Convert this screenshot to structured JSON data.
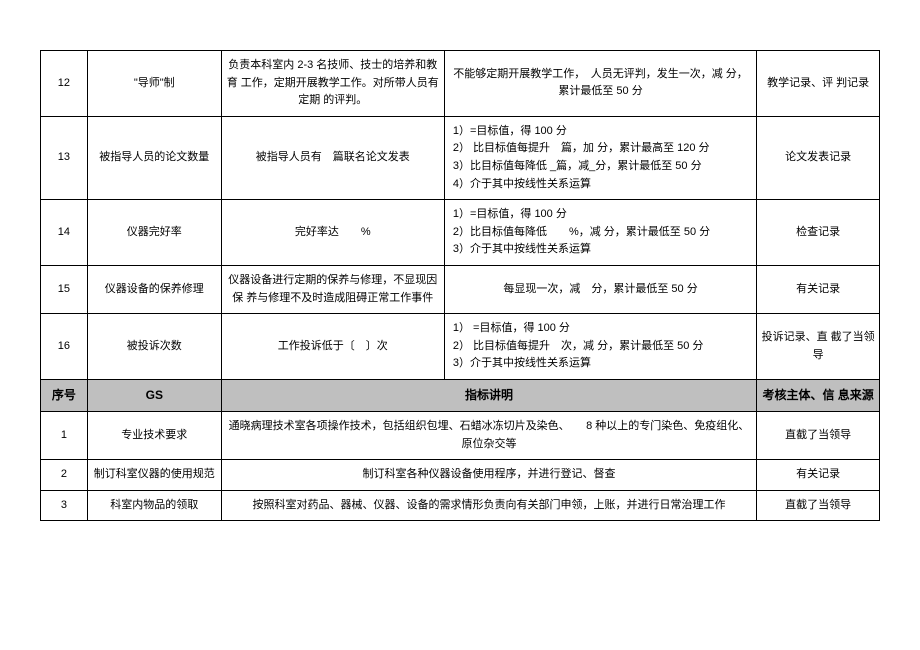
{
  "section1": {
    "rows": [
      {
        "no": "12",
        "name": "\"导师\"制",
        "desc": "负责本科室内 2-3 名技师、技士的培养和教育 工作，定期开展教学工作。对所带人员有定期 的评判。",
        "criteria": "不能够定期开展教学工作，　人员无评判，发生一次，减 分，累计最低至 50 分",
        "source": "教学记录、评 判记录"
      },
      {
        "no": "13",
        "name": "被指导人员的论文数量",
        "desc": "被指导人员有　篇联名论文发表",
        "criteria": "1）=目标值，得 100 分\n2） 比目标值每提升　篇，加 分，累计最高至 120 分\n3）比目标值每降低 _篇，减_分，累计最低至 50 分\n4）介于其中按线性关系运算",
        "source": "论文发表记录"
      },
      {
        "no": "14",
        "name": "仪器完好率",
        "desc": "完好率达　　%",
        "criteria": "1）=目标值，得 100 分\n2）比目标值每降低　　%，减 分，累计最低至 50 分\n3）介于其中按线性关系运算",
        "source": "检查记录"
      },
      {
        "no": "15",
        "name": "仪器设备的保养修理",
        "desc": "仪器设备进行定期的保养与修理，不显现因保 养与修理不及时造成阻碍正常工作事件",
        "criteria": "每显现一次，减　分，累计最低至 50 分",
        "source": "有关记录"
      },
      {
        "no": "16",
        "name": "被投诉次数",
        "desc": "工作投诉低于〔　〕次",
        "criteria": "1） =目标值，得 100 分\n2） 比目标值每提升　次，减 分，累计最低至 50 分\n3）介于其中按线性关系运算",
        "source": "投诉记录、直 截了当领导"
      }
    ]
  },
  "header2": {
    "no": "序号",
    "gs": "GS",
    "desc": "指标讲明",
    "source": "考核主体、信 息来源"
  },
  "section2": {
    "rows": [
      {
        "no": "1",
        "name": "专业技术要求",
        "desc": "通晓病理技术室各项操作技术，包括组织包埋、石蜡冰冻切片及染色、　　8 种以上的专门染色、免疫组化、原位杂交等",
        "source": "直截了当领导"
      },
      {
        "no": "2",
        "name": "制订科室仪器的使用规范",
        "desc": "制订科室各种仪器设备使用程序，并进行登记、督查",
        "source": "有关记录"
      },
      {
        "no": "3",
        "name": "科室内物品的领取",
        "desc": "按照科室对药品、器械、仪器、设备的需求情形负责向有关部门申领，上账，并进行日常治理工作",
        "source": "直截了当领导"
      }
    ]
  }
}
